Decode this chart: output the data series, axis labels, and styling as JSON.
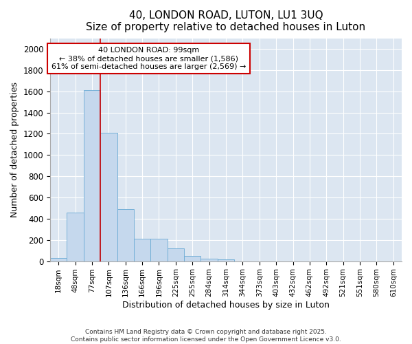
{
  "title": "40, LONDON ROAD, LUTON, LU1 3UQ",
  "subtitle": "Size of property relative to detached houses in Luton",
  "xlabel": "Distribution of detached houses by size in Luton",
  "ylabel": "Number of detached properties",
  "categories": [
    "18sqm",
    "48sqm",
    "77sqm",
    "107sqm",
    "136sqm",
    "166sqm",
    "196sqm",
    "225sqm",
    "255sqm",
    "284sqm",
    "314sqm",
    "344sqm",
    "373sqm",
    "403sqm",
    "432sqm",
    "462sqm",
    "492sqm",
    "521sqm",
    "551sqm",
    "580sqm",
    "610sqm"
  ],
  "values": [
    30,
    460,
    1610,
    1210,
    490,
    210,
    210,
    120,
    50,
    25,
    20,
    0,
    0,
    0,
    0,
    0,
    0,
    0,
    0,
    0,
    0
  ],
  "bar_color": "#c5d8ed",
  "bar_edge_color": "#6aaad4",
  "background_color": "#dce6f1",
  "grid_color": "#ffffff",
  "red_line_x": 3.0,
  "annotation_text": "40 LONDON ROAD: 99sqm\n← 38% of detached houses are smaller (1,586)\n61% of semi-detached houses are larger (2,569) →",
  "annotation_box_color": "#ffffff",
  "annotation_box_edge": "#cc0000",
  "footer_line1": "Contains HM Land Registry data © Crown copyright and database right 2025.",
  "footer_line2": "Contains public sector information licensed under the Open Government Licence v3.0.",
  "ylim": [
    0,
    2100
  ],
  "yticks": [
    0,
    200,
    400,
    600,
    800,
    1000,
    1200,
    1400,
    1600,
    1800,
    2000
  ]
}
